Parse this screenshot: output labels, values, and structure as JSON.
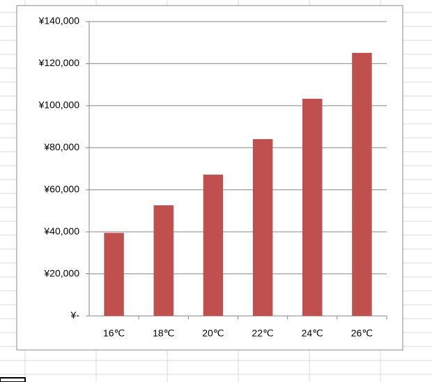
{
  "chart_data": {
    "type": "bar",
    "categories": [
      "16℃",
      "18℃",
      "20℃",
      "22℃",
      "24℃",
      "26℃"
    ],
    "values": [
      39500,
      52600,
      67200,
      84100,
      103300,
      125100
    ],
    "color": "#c0504d",
    "ylim": [
      0,
      140000
    ],
    "yticks": [
      {
        "value": 0,
        "label": "¥-"
      },
      {
        "value": 20000,
        "label": "¥20,000"
      },
      {
        "value": 40000,
        "label": "¥40,000"
      },
      {
        "value": 60000,
        "label": "¥60,000"
      },
      {
        "value": 80000,
        "label": "¥80,000"
      },
      {
        "value": 100000,
        "label": "¥100,000"
      },
      {
        "value": 120000,
        "label": "¥120,000"
      },
      {
        "value": 140000,
        "label": "¥140,000"
      }
    ],
    "grid": true
  }
}
